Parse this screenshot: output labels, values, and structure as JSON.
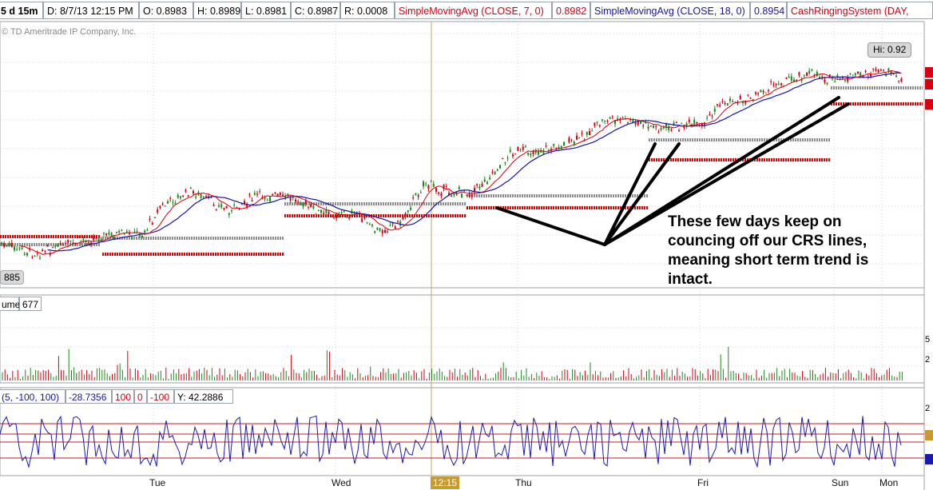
{
  "header": {
    "period": "5 d 15m",
    "date": "D: 8/7/13 12:15 PM",
    "open": "O: 0.8983",
    "high": "H: 0.8989",
    "low": "L: 0.8981",
    "close": "C: 0.8987",
    "range": "R: 0.0008",
    "sma7_label": "SimpleMovingAvg (CLOSE, 7, 0)",
    "sma7_value": "0.8982",
    "sma18_label": "SimpleMovingAvg (CLOSE, 18, 0)",
    "sma18_value": "0.8954",
    "crs_label": "CashRingingSystem (DAY,"
  },
  "copyright": "© TD Ameritrade IP Company, Inc.",
  "price_panel": {
    "hi_label": "Hi: 0.92",
    "left_price_label": "885"
  },
  "volume_panel": {
    "label": "ume",
    "value": "677",
    "right_ticks": [
      "5",
      "2"
    ]
  },
  "oscillator_panel": {
    "params": "(5, -100, 100)",
    "value": "-28.7356",
    "upper": "100",
    "zero": "0",
    "lower": "-100",
    "y_readout": "Y: 42.2886",
    "right_ticks": [
      "2"
    ]
  },
  "time_axis": {
    "days": [
      "Tue",
      "Wed",
      "Thu",
      "Fri",
      "Sun",
      "Mon"
    ],
    "cursor_time": "12:15"
  },
  "annotation": {
    "lines": [
      "These few days keep on",
      "councing off our CRS lines,",
      "meaning short term trend is",
      "intact."
    ]
  },
  "colors": {
    "sma7": "#d8000f",
    "sma18": "#1414a8",
    "crs_support": "#e00000",
    "crs_pivot": "#8c8c8c",
    "volume": "#1e8a1e",
    "oscillator": "#1a1ab0"
  }
}
